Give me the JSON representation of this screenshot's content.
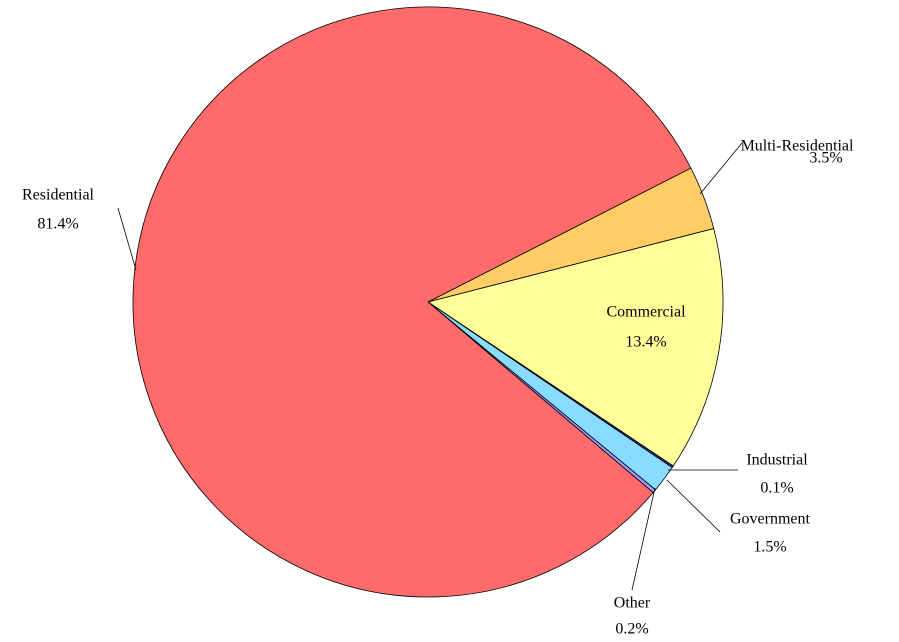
{
  "chart_data": {
    "type": "pie",
    "categories": [
      "Multi-Residential",
      "Commercial",
      "Industrial",
      "Government",
      "Other",
      "Residential"
    ],
    "values": [
      3.5,
      13.4,
      0.1,
      1.5,
      0.2,
      81.4
    ],
    "value_labels": [
      "3.5%",
      "13.4%",
      "0.1%",
      "1.5%",
      "0.2%",
      "81.4%"
    ],
    "colors": [
      "#ffcc66",
      "#ffff99",
      "#333399",
      "#87dcff",
      "#9999ff",
      "#ff6b6b"
    ]
  }
}
